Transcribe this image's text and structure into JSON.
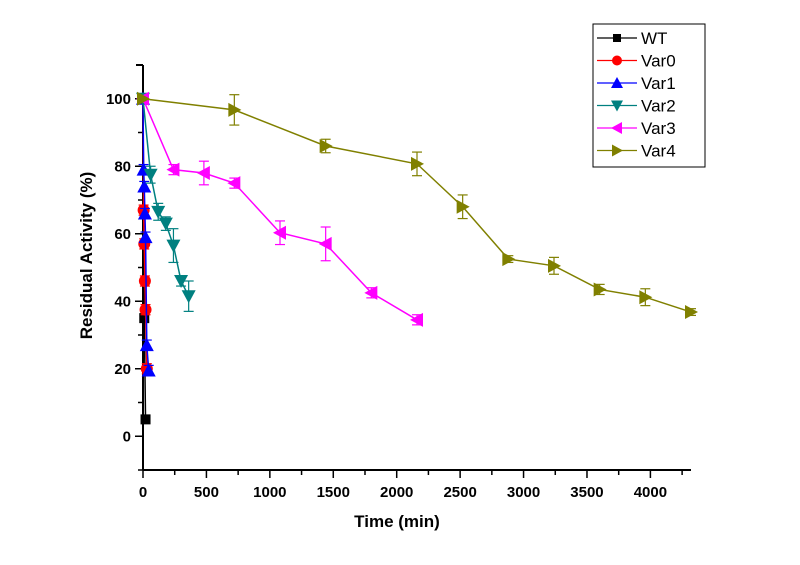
{
  "chart_data": {
    "type": "line",
    "title": "",
    "xlabel": "Time (min)",
    "ylabel": "Residual Activity (%)",
    "xlim": [
      0,
      4320
    ],
    "ylim": [
      -10,
      110
    ],
    "xticks": [
      0,
      500,
      1000,
      1500,
      2000,
      2500,
      3000,
      3500,
      4000
    ],
    "yticks": [
      0,
      20,
      40,
      60,
      80,
      100
    ],
    "grid": false,
    "legend_position": "top-right",
    "series": [
      {
        "name": "WT",
        "color": "#000000",
        "marker": "square",
        "x": [
          0,
          10,
          20
        ],
        "y": [
          100,
          35,
          5
        ],
        "err": [
          0,
          0,
          0
        ]
      },
      {
        "name": "Var0",
        "color": "#ff0000",
        "marker": "circle",
        "x": [
          0,
          5,
          10,
          15,
          20,
          30
        ],
        "y": [
          100,
          67,
          57,
          46,
          37.5,
          20
        ],
        "err": [
          0,
          1.5,
          1.5,
          1.5,
          1.5,
          1.5
        ]
      },
      {
        "name": "Var1",
        "color": "#0000ff",
        "marker": "triangle-up",
        "x": [
          0,
          5,
          10,
          15,
          20,
          30,
          45
        ],
        "y": [
          100,
          79,
          74,
          66,
          59,
          27,
          19.5
        ],
        "err": [
          0,
          1.5,
          1.5,
          1.5,
          1.5,
          1.5,
          1.5
        ]
      },
      {
        "name": "Var2",
        "color": "#008080",
        "marker": "triangle-down",
        "x": [
          0,
          60,
          120,
          180,
          240,
          300,
          360
        ],
        "y": [
          100,
          77.5,
          66.5,
          63,
          56.5,
          46,
          41.5
        ],
        "err": [
          0,
          2.5,
          2.5,
          2,
          5,
          1.5,
          4.5
        ]
      },
      {
        "name": "Var3",
        "color": "#ff00ff",
        "marker": "triangle-left",
        "x": [
          0,
          240,
          480,
          720,
          1080,
          1440,
          1800,
          2160
        ],
        "y": [
          100,
          79,
          78,
          75,
          60.3,
          57,
          42.5,
          34.5
        ],
        "err": [
          0,
          1.5,
          3.5,
          1.5,
          3.5,
          5,
          1.5,
          1.5
        ]
      },
      {
        "name": "Var4",
        "color": "#808000",
        "marker": "triangle-right",
        "x": [
          0,
          720,
          1440,
          2160,
          2520,
          2880,
          3240,
          3600,
          3960,
          4320
        ],
        "y": [
          100,
          96.7,
          86,
          80.7,
          68,
          52.5,
          50.5,
          43.5,
          41.2,
          36.8
        ],
        "err": [
          0,
          4.5,
          2,
          3.5,
          3.5,
          1,
          2.5,
          1.5,
          2.5,
          1
        ]
      }
    ]
  }
}
